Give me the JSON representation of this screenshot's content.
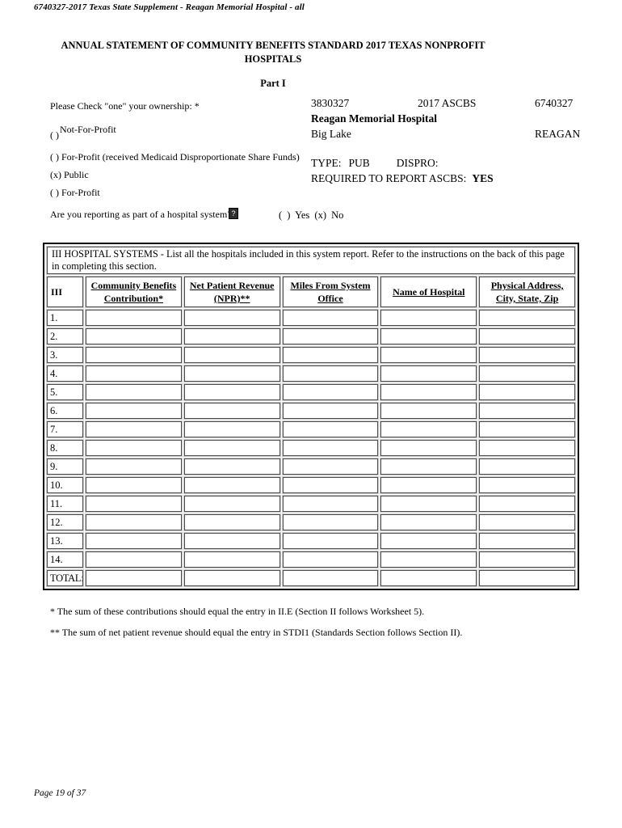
{
  "page": {
    "top_header": "6740327-2017 Texas State Supplement - Reagan Memorial Hospital - all",
    "footer_page": "Page 19 of 37"
  },
  "title": {
    "line1": "ANNUAL STATEMENT OF COMMUNITY BENEFITS STANDARD 2017 TEXAS NONPROFIT",
    "line2": "HOSPITALS",
    "part": "Part I"
  },
  "ownership": {
    "prompt": "Please Check \"one\" your ownership: *",
    "options": [
      {
        "mark": "( )",
        "label": "Not-For-Profit"
      },
      {
        "mark": "( )",
        "label": "For-Profit (received Medicaid Disproportionate Share Funds)"
      },
      {
        "mark": "(x)",
        "label": "Public"
      },
      {
        "mark": "( )",
        "label": "For-Profit"
      }
    ]
  },
  "facility": {
    "id_left": "3830327",
    "id_center": "2017 ASCBS",
    "id_right": "6740327",
    "name": "Reagan Memorial Hospital",
    "city": "Big Lake",
    "county": "REAGAN",
    "type_label": "TYPE:",
    "type_value": "PUB",
    "dispro_label": "DISPRO:",
    "required_label": "REQUIRED TO REPORT ASCBS:",
    "required_value": "YES"
  },
  "system_question": {
    "label": "Are you reporting as part of a hospital system?",
    "help_icon_glyph": "?",
    "answer": "( ) Yes (x) No"
  },
  "table": {
    "caption": "III HOSPITAL SYSTEMS - List all the hospitals included in this system report. Refer to the instructions on the back of this page in completing this section.",
    "columns": [
      "III",
      "Community Benefits Contribution*",
      "Net Patient Revenue (NPR)**",
      "Miles From System Office",
      "Name of Hospital",
      "Physical Address, City, State, Zip"
    ],
    "rows": [
      "1.",
      "2.",
      "3.",
      "4.",
      "5.",
      "6.",
      "7.",
      "8.",
      "9.",
      "10.",
      "11.",
      "12.",
      "13.",
      "14."
    ],
    "total_label": "TOTAL:"
  },
  "footnotes": {
    "one": "* The sum of these contributions should equal the entry in II.E (Section II follows Worksheet 5).",
    "two": "** The sum of net patient revenue should equal the entry in STDI1 (Standards Section follows Section II)."
  }
}
